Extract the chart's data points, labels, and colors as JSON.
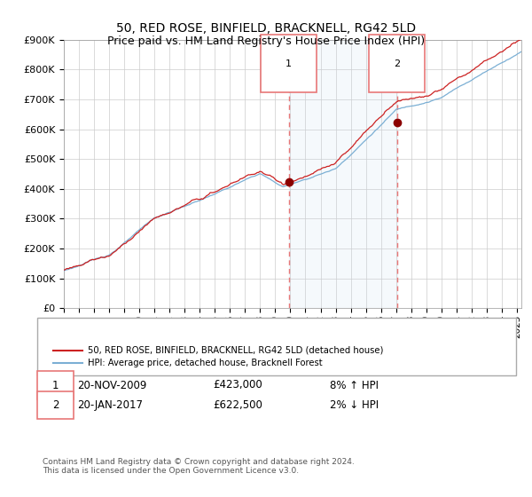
{
  "title": "50, RED ROSE, BINFIELD, BRACKNELL, RG42 5LD",
  "subtitle": "Price paid vs. HM Land Registry's House Price Index (HPI)",
  "ylim": [
    0,
    900000
  ],
  "yticks": [
    0,
    100000,
    200000,
    300000,
    400000,
    500000,
    600000,
    700000,
    800000,
    900000
  ],
  "ytick_labels": [
    "£0",
    "£100K",
    "£200K",
    "£300K",
    "£400K",
    "£500K",
    "£600K",
    "£700K",
    "£800K",
    "£900K"
  ],
  "sale1_date": 2009.9,
  "sale1_price": 423000,
  "sale2_date": 2017.05,
  "sale2_price": 622500,
  "hpi_line_color": "#7bafd4",
  "price_line_color": "#cc2222",
  "sale_marker_color": "#8b0000",
  "vline_color": "#e87878",
  "shade_color": "#cce0f0",
  "background_color": "#ffffff",
  "grid_color": "#cccccc",
  "legend_label_red": "50, RED ROSE, BINFIELD, BRACKNELL, RG42 5LD (detached house)",
  "legend_label_blue": "HPI: Average price, detached house, Bracknell Forest",
  "footer": "Contains HM Land Registry data © Crown copyright and database right 2024.\nThis data is licensed under the Open Government Licence v3.0.",
  "xstart": 1995.0,
  "xend": 2025.3
}
